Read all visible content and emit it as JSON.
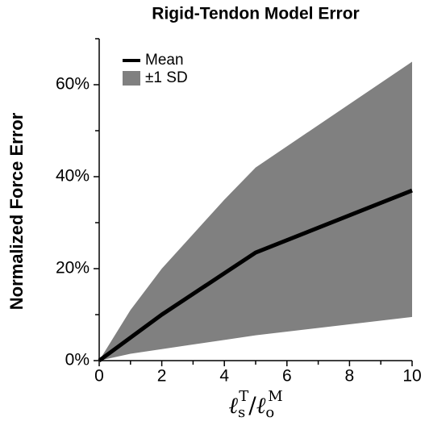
{
  "chart_data": {
    "type": "line",
    "title": "Rigid-Tendon Model Error",
    "ylabel": "Normalized Force Error",
    "xlabel": [
      "ℓ",
      "s",
      "T",
      "/",
      "ℓ",
      "o",
      "M"
    ],
    "x": [
      0,
      1,
      2,
      3,
      4,
      5,
      10
    ],
    "series": [
      {
        "name": "Mean",
        "color": "#000000",
        "values": [
          0,
          5,
          10,
          14.5,
          19,
          23.5,
          37
        ]
      },
      {
        "name": "±1 SD",
        "color": "#808080",
        "upper": [
          0,
          11,
          20,
          27.5,
          35,
          42,
          65
        ],
        "lower": [
          0,
          1.5,
          2.5,
          3.5,
          4.5,
          5.5,
          9.5
        ]
      }
    ],
    "xlim": [
      0,
      10
    ],
    "xticks": [
      0,
      2,
      4,
      6,
      8,
      10
    ],
    "xminor_ticks": [
      1,
      3,
      5,
      7,
      9
    ],
    "ylim": [
      0,
      70
    ],
    "yticks": [
      {
        "value": 0,
        "label": "0%"
      },
      {
        "value": 20,
        "label": "20%"
      },
      {
        "value": 40,
        "label": "40%"
      },
      {
        "value": 60,
        "label": "60%"
      }
    ],
    "yminor_ticks": [
      10,
      30,
      50,
      70
    ],
    "legend": "upper left"
  }
}
